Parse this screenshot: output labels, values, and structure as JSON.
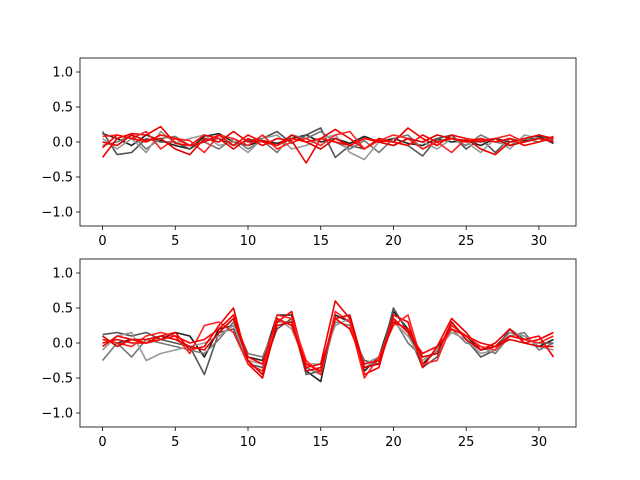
{
  "chart_data": [
    {
      "type": "line",
      "title": "",
      "xlabel": "",
      "ylabel": "",
      "xlim": [
        -1.55,
        32.55
      ],
      "ylim": [
        -1.2,
        1.2
      ],
      "xticks": [
        0,
        5,
        10,
        15,
        20,
        25,
        30
      ],
      "yticks": [
        -1.0,
        -0.5,
        0.0,
        0.5,
        1.0
      ],
      "xtick_labels": [
        "0",
        "5",
        "10",
        "15",
        "20",
        "25",
        "30"
      ],
      "ytick_labels": [
        "−1.0",
        "−0.5",
        "0.0",
        "0.5",
        "1.0"
      ],
      "grid": false,
      "x": [
        0,
        1,
        2,
        3,
        4,
        5,
        6,
        7,
        8,
        9,
        10,
        11,
        12,
        13,
        14,
        15,
        16,
        17,
        18,
        19,
        20,
        21,
        22,
        23,
        24,
        25,
        26,
        27,
        28,
        29,
        30,
        31
      ],
      "series": [
        {
          "color": "#222222",
          "values": [
            0.12,
            0.05,
            -0.05,
            0.1,
            0.02,
            -0.05,
            -0.1,
            0.08,
            0.12,
            0.0,
            -0.05,
            0.02,
            -0.02,
            0.05,
            0.1,
            0.0,
            0.05,
            -0.02,
            0.08,
            0.0,
            0.05,
            -0.02,
            -0.05,
            0.05,
            0.0,
            0.02,
            -0.05,
            0.05,
            0.0,
            0.02,
            0.08,
            -0.02
          ]
        },
        {
          "color": "#555555",
          "values": [
            0.15,
            -0.18,
            -0.15,
            0.05,
            0.0,
            0.0,
            -0.1,
            0.02,
            0.05,
            -0.05,
            0.02,
            0.05,
            0.15,
            -0.02,
            0.1,
            0.2,
            -0.22,
            -0.05,
            -0.1,
            0.05,
            0.0,
            -0.05,
            -0.2,
            0.05,
            0.1,
            -0.1,
            0.05,
            -0.15,
            0.05,
            0.0,
            0.1,
            0.02
          ]
        },
        {
          "color": "#777777",
          "values": [
            -0.05,
            0.0,
            0.1,
            -0.1,
            0.05,
            0.08,
            -0.05,
            0.0,
            -0.1,
            0.05,
            -0.1,
            0.02,
            -0.15,
            0.1,
            0.05,
            0.15,
            0.0,
            -0.1,
            0.02,
            -0.15,
            0.05,
            0.1,
            -0.1,
            0.02,
            0.05,
            -0.05,
            0.1,
            0.0,
            -0.05,
            0.05,
            0.0,
            0.05
          ]
        },
        {
          "color": "#999999",
          "values": [
            0.05,
            -0.1,
            0.05,
            -0.15,
            0.15,
            -0.02,
            0.05,
            0.1,
            -0.05,
            0.0,
            -0.15,
            0.05,
            0.1,
            -0.1,
            -0.05,
            0.05,
            0.1,
            -0.15,
            -0.25,
            0.0,
            -0.05,
            0.05,
            0.0,
            -0.1,
            0.05,
            0.0,
            -0.15,
            0.05,
            -0.1,
            0.1,
            0.05,
            0.0
          ]
        },
        {
          "color": "#ee0000",
          "values": [
            -0.22,
            0.05,
            0.12,
            0.1,
            0.22,
            -0.02,
            -0.05,
            0.1,
            0.05,
            -0.1,
            0.05,
            -0.05,
            0.05,
            0.02,
            -0.3,
            0.05,
            0.18,
            0.05,
            -0.1,
            0.05,
            0.0,
            0.2,
            0.05,
            -0.05,
            0.1,
            0.05,
            -0.1,
            -0.18,
            0.0,
            0.05,
            0.1,
            0.05
          ]
        },
        {
          "color": "#ff2222",
          "values": [
            0.08,
            0.1,
            0.05,
            0.15,
            -0.1,
            0.05,
            0.02,
            -0.15,
            0.1,
            0.05,
            -0.05,
            0.1,
            -0.1,
            0.0,
            0.05,
            -0.05,
            0.1,
            0.15,
            -0.1,
            0.02,
            0.1,
            0.05,
            -0.1,
            0.0,
            -0.15,
            0.05,
            0.02,
            0.05,
            0.1,
            0.0,
            0.05,
            0.02
          ]
        },
        {
          "color": "#dd0000",
          "values": [
            0.0,
            -0.05,
            0.1,
            0.02,
            0.05,
            -0.1,
            -0.18,
            0.05,
            0.0,
            0.15,
            0.0,
            0.02,
            -0.05,
            0.1,
            0.0,
            -0.1,
            0.05,
            -0.05,
            0.05,
            0.0,
            -0.05,
            0.05,
            0.0,
            0.1,
            0.05,
            0.02,
            0.0,
            0.05,
            -0.05,
            0.0,
            0.05,
            0.0
          ]
        },
        {
          "color": "#ff0000",
          "values": [
            -0.08,
            0.1,
            0.05,
            0.0,
            0.1,
            0.05,
            -0.05,
            0.0,
            0.1,
            -0.05,
            0.1,
            0.0,
            -0.05,
            0.05,
            0.0,
            0.05,
            0.0,
            -0.05,
            0.05,
            0.02,
            0.0,
            -0.05,
            0.1,
            0.0,
            0.05,
            0.0,
            0.05,
            0.0,
            0.05,
            -0.05,
            0.0,
            0.08
          ]
        }
      ]
    },
    {
      "type": "line",
      "title": "",
      "xlabel": "",
      "ylabel": "",
      "xlim": [
        -1.55,
        32.55
      ],
      "ylim": [
        -1.2,
        1.2
      ],
      "xticks": [
        0,
        5,
        10,
        15,
        20,
        25,
        30
      ],
      "yticks": [
        -1.0,
        -0.5,
        0.0,
        0.5,
        1.0
      ],
      "xtick_labels": [
        "0",
        "5",
        "10",
        "15",
        "20",
        "25",
        "30"
      ],
      "ytick_labels": [
        "−1.0",
        "−0.5",
        "0.0",
        "0.5",
        "1.0"
      ],
      "grid": false,
      "x": [
        0,
        1,
        2,
        3,
        4,
        5,
        6,
        7,
        8,
        9,
        10,
        11,
        12,
        13,
        14,
        15,
        16,
        17,
        18,
        19,
        20,
        21,
        22,
        23,
        24,
        25,
        26,
        27,
        28,
        29,
        30,
        31
      ],
      "series": [
        {
          "color": "#222222",
          "values": [
            0.05,
            0.0,
            0.05,
            0.0,
            0.05,
            0.15,
            0.1,
            -0.2,
            0.2,
            0.25,
            -0.2,
            -0.25,
            0.4,
            0.4,
            -0.4,
            -0.55,
            0.4,
            0.3,
            -0.4,
            -0.2,
            0.45,
            0.2,
            -0.3,
            -0.1,
            0.25,
            0.1,
            -0.1,
            -0.05,
            0.15,
            0.1,
            -0.05,
            0.05
          ]
        },
        {
          "color": "#555555",
          "values": [
            0.12,
            0.15,
            0.1,
            0.15,
            0.05,
            0.0,
            -0.05,
            -0.45,
            0.15,
            0.2,
            -0.3,
            -0.35,
            0.2,
            0.35,
            -0.45,
            -0.4,
            0.35,
            0.2,
            -0.25,
            -0.3,
            0.5,
            0.15,
            -0.35,
            -0.2,
            0.3,
            0.05,
            -0.2,
            -0.1,
            0.2,
            0.05,
            0.0,
            0.0
          ]
        },
        {
          "color": "#777777",
          "values": [
            -0.25,
            0.0,
            -0.2,
            0.05,
            0.0,
            -0.05,
            -0.1,
            -0.15,
            0.05,
            0.3,
            -0.15,
            -0.2,
            0.3,
            0.3,
            -0.35,
            -0.45,
            0.3,
            0.25,
            -0.35,
            -0.25,
            0.35,
            0.0,
            -0.2,
            -0.15,
            0.2,
            0.0,
            -0.05,
            -0.15,
            0.1,
            0.15,
            -0.1,
            0.0
          ]
        },
        {
          "color": "#999999",
          "values": [
            -0.1,
            0.1,
            0.15,
            -0.25,
            -0.15,
            -0.1,
            -0.05,
            0.0,
            0.1,
            0.25,
            -0.25,
            -0.3,
            0.35,
            0.2,
            -0.3,
            -0.3,
            0.25,
            0.35,
            -0.3,
            -0.2,
            0.3,
            0.1,
            -0.25,
            -0.1,
            0.15,
            0.05,
            -0.15,
            -0.1,
            0.15,
            0.1,
            -0.05,
            -0.1
          ]
        },
        {
          "color": "#ee0000",
          "values": [
            0.0,
            0.05,
            0.0,
            0.0,
            0.1,
            0.15,
            -0.1,
            -0.05,
            0.25,
            0.5,
            -0.3,
            -0.5,
            0.3,
            0.45,
            -0.35,
            -0.3,
            0.6,
            0.35,
            -0.45,
            -0.35,
            0.4,
            0.3,
            -0.35,
            -0.05,
            0.35,
            0.15,
            -0.1,
            0.0,
            0.2,
            0.0,
            0.05,
            0.15
          ]
        },
        {
          "color": "#ff2222",
          "values": [
            0.05,
            0.0,
            -0.05,
            0.1,
            0.15,
            0.1,
            -0.15,
            0.25,
            0.3,
            0.15,
            -0.3,
            -0.4,
            0.4,
            0.35,
            -0.25,
            -0.45,
            0.45,
            0.3,
            -0.5,
            -0.2,
            0.25,
            0.4,
            -0.3,
            -0.25,
            0.25,
            0.1,
            -0.05,
            -0.1,
            0.1,
            0.05,
            0.0,
            0.1
          ]
        },
        {
          "color": "#dd0000",
          "values": [
            0.1,
            -0.05,
            0.05,
            0.05,
            0.1,
            0.05,
            -0.05,
            -0.1,
            0.15,
            0.35,
            -0.25,
            -0.45,
            0.25,
            0.3,
            -0.4,
            -0.35,
            0.35,
            0.4,
            -0.35,
            -0.3,
            0.3,
            0.2,
            -0.2,
            -0.15,
            0.3,
            0.05,
            -0.1,
            -0.05,
            0.05,
            0.0,
            -0.05,
            -0.05
          ]
        },
        {
          "color": "#ff0000",
          "values": [
            -0.05,
            0.1,
            0.05,
            0.0,
            0.05,
            0.1,
            0.0,
            0.05,
            0.2,
            0.4,
            -0.2,
            -0.3,
            0.35,
            0.25,
            -0.3,
            -0.4,
            0.35,
            0.2,
            -0.3,
            -0.25,
            0.35,
            0.15,
            -0.15,
            -0.05,
            0.2,
            0.1,
            0.0,
            -0.05,
            0.1,
            0.05,
            0.1,
            -0.2
          ]
        }
      ]
    }
  ]
}
